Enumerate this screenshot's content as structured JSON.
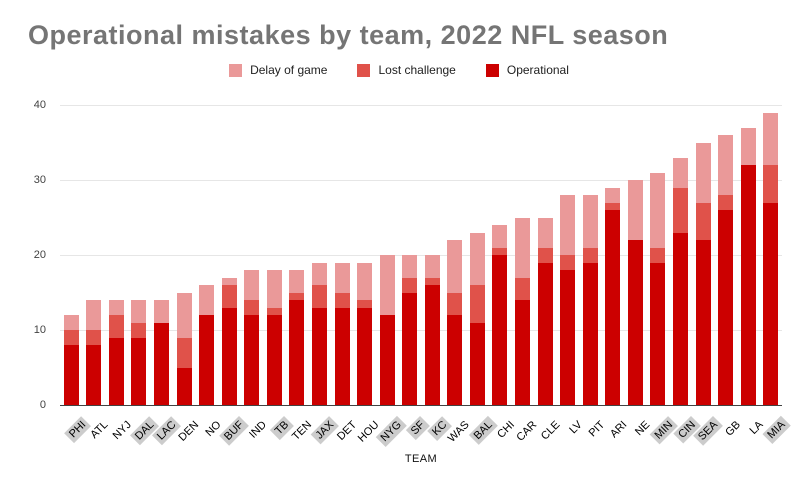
{
  "title": "Operational mistakes by team, 2022 NFL season",
  "chart_data": {
    "type": "bar",
    "stacked": true,
    "title": "Operational mistakes by team, 2022 NFL season",
    "xlabel": "TEAM",
    "ylabel": "",
    "ylim": [
      0,
      40
    ],
    "yticks": [
      0,
      10,
      20,
      30,
      40
    ],
    "grid": true,
    "legend_position": "top",
    "categories": [
      "PHI",
      "ATL",
      "NYJ",
      "DAL",
      "LAC",
      "DEN",
      "NO",
      "BUF",
      "IND",
      "TB",
      "TEN",
      "JAX",
      "DET",
      "HOU",
      "NYG",
      "SF",
      "KC",
      "WAS",
      "BAL",
      "CHI",
      "CAR",
      "CLE",
      "LV",
      "PIT",
      "ARI",
      "NE",
      "MIN",
      "CIN",
      "SEA",
      "GB",
      "LA",
      "MIA"
    ],
    "highlighted_categories": [
      "PHI",
      "DAL",
      "LAC",
      "BUF",
      "TB",
      "JAX",
      "NYG",
      "SF",
      "KC",
      "BAL",
      "MIN",
      "CIN",
      "SEA",
      "MIA"
    ],
    "series": [
      {
        "name": "Delay of game",
        "color": "#ea9999",
        "values": [
          2,
          4,
          2,
          3,
          3,
          6,
          4,
          1,
          4,
          5,
          3,
          3,
          4,
          5,
          8,
          3,
          3,
          7,
          7,
          3,
          8,
          4,
          8,
          7,
          2,
          8,
          10,
          4,
          8,
          8,
          5,
          7
        ]
      },
      {
        "name": "Lost challenge",
        "color": "#e0524a",
        "values": [
          2,
          2,
          3,
          2,
          0,
          4,
          0,
          3,
          2,
          1,
          1,
          3,
          2,
          1,
          0,
          2,
          1,
          3,
          5,
          1,
          3,
          2,
          2,
          2,
          1,
          0,
          2,
          6,
          5,
          2,
          0,
          5
        ]
      },
      {
        "name": "Operational",
        "color": "#cc0000",
        "values": [
          8,
          8,
          9,
          9,
          11,
          5,
          12,
          13,
          12,
          12,
          14,
          13,
          13,
          13,
          12,
          15,
          16,
          12,
          11,
          20,
          14,
          19,
          18,
          19,
          26,
          22,
          19,
          23,
          22,
          26,
          32,
          27
        ]
      }
    ],
    "totals": [
      12,
      14,
      14,
      14,
      14,
      15,
      16,
      17,
      18,
      18,
      18,
      19,
      19,
      19,
      20,
      20,
      20,
      22,
      23,
      24,
      25,
      25,
      28,
      28,
      29,
      30,
      31,
      33,
      35,
      36,
      37,
      39
    ]
  },
  "colors": {
    "title": "#757575",
    "gridline": "#e6e6e6",
    "axis_line": "#424242",
    "highlight_label_bg": "#cccccc"
  }
}
